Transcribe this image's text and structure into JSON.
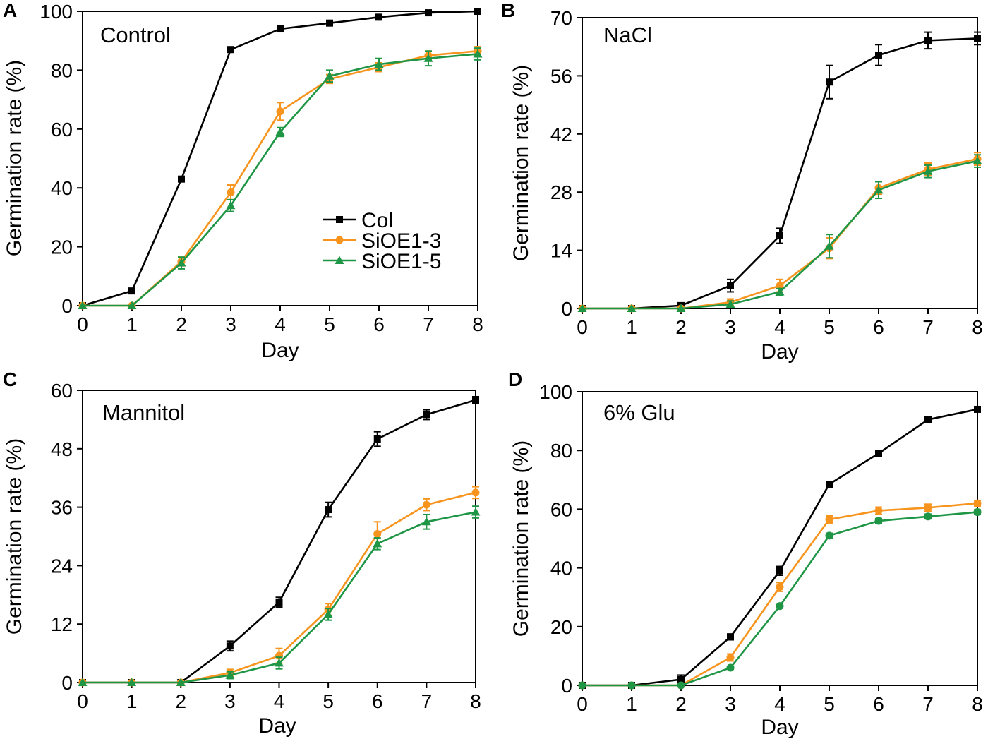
{
  "chart_data": [
    {
      "type": "line",
      "panel": "A",
      "title": "Control",
      "xlabel": "Day",
      "ylabel": "Germination rate (%)",
      "x": [
        0,
        1,
        2,
        3,
        4,
        5,
        6,
        7,
        8
      ],
      "xlim": [
        0,
        8
      ],
      "ylim": [
        0,
        100
      ],
      "yticks": [
        0,
        20,
        40,
        60,
        80,
        100
      ],
      "legend": "center-right",
      "series": [
        {
          "name": "Col",
          "color": "#000000",
          "marker": "square",
          "values": [
            0,
            5,
            43,
            87,
            94,
            96,
            98,
            99.5,
            100
          ],
          "errors": [
            0,
            0.5,
            0.8,
            0.8,
            0.8,
            0.8,
            0.8,
            0.8,
            0.5
          ]
        },
        {
          "name": "SiOE1-3",
          "color": "#f7941d",
          "marker": "circle",
          "values": [
            0,
            0,
            15,
            38.5,
            66,
            77,
            81,
            85,
            86.5
          ],
          "errors": [
            0,
            0,
            1.5,
            2.5,
            3,
            1.5,
            1.5,
            1.5,
            1.5
          ]
        },
        {
          "name": "SiOE1-5",
          "color": "#1e9645",
          "marker": "triangle",
          "values": [
            0,
            0,
            14.5,
            34,
            59,
            78,
            82,
            84,
            85.5
          ],
          "errors": [
            0,
            0,
            2,
            2,
            1.5,
            2,
            2,
            2.5,
            2
          ]
        }
      ]
    },
    {
      "type": "line",
      "panel": "B",
      "title": "NaCl",
      "xlabel": "Day",
      "ylabel": "Germination rate (%)",
      "x": [
        0,
        1,
        2,
        3,
        4,
        5,
        6,
        7,
        8
      ],
      "xlim": [
        0,
        8
      ],
      "ylim": [
        0,
        70
      ],
      "yticks": [
        0,
        14,
        28,
        42,
        56,
        70
      ],
      "series": [
        {
          "name": "Col",
          "color": "#000000",
          "marker": "square",
          "values": [
            0,
            0,
            0.7,
            5.5,
            17.5,
            54.5,
            61,
            64.5,
            65
          ],
          "errors": [
            0,
            0,
            0.5,
            1.5,
            1.8,
            4,
            2.5,
            2,
            1.5
          ]
        },
        {
          "name": "SiOE1-3",
          "color": "#f7941d",
          "marker": "circle",
          "values": [
            0,
            0,
            0,
            1.5,
            5.5,
            14.5,
            29,
            33.5,
            36
          ],
          "errors": [
            0,
            0,
            0,
            0.8,
            1.5,
            2.5,
            1.5,
            1.5,
            1.5
          ]
        },
        {
          "name": "SiOE1-5",
          "color": "#1e9645",
          "marker": "triangle",
          "values": [
            0,
            0,
            0,
            1,
            4,
            15,
            28.5,
            33,
            35.5
          ],
          "errors": [
            0,
            0,
            0,
            0.8,
            0.8,
            2.8,
            2,
            1.5,
            1.5
          ]
        }
      ]
    },
    {
      "type": "line",
      "panel": "C",
      "title": "Mannitol",
      "xlabel": "Day",
      "ylabel": "Germination rate (%)",
      "x": [
        0,
        1,
        2,
        3,
        4,
        5,
        6,
        7,
        8
      ],
      "xlim": [
        0,
        8
      ],
      "ylim": [
        0,
        60
      ],
      "yticks": [
        0,
        12,
        24,
        36,
        48,
        60
      ],
      "series": [
        {
          "name": "Col",
          "color": "#000000",
          "marker": "square",
          "values": [
            0,
            0,
            0,
            7.5,
            16.5,
            35.5,
            50,
            55,
            58
          ],
          "errors": [
            0,
            0,
            0,
            1,
            1,
            1.5,
            1.5,
            1,
            0.7
          ]
        },
        {
          "name": "SiOE1-3",
          "color": "#f7941d",
          "marker": "circle",
          "values": [
            0,
            0,
            0,
            2,
            5.5,
            15,
            30.5,
            36.5,
            39
          ],
          "errors": [
            0,
            0,
            0,
            0.7,
            1.5,
            1.2,
            2.5,
            1.2,
            1.2
          ]
        },
        {
          "name": "SiOE1-5",
          "color": "#1e9645",
          "marker": "triangle",
          "values": [
            0,
            0,
            0,
            1.5,
            4,
            14,
            28.5,
            33,
            35
          ],
          "errors": [
            0,
            0,
            0,
            0.7,
            1.2,
            1.2,
            1.2,
            1.5,
            1.2
          ]
        }
      ]
    },
    {
      "type": "line",
      "panel": "D",
      "title": "6% Glu",
      "xlabel": "Day",
      "ylabel": "Germination rate (%)",
      "x": [
        0,
        1,
        2,
        3,
        4,
        5,
        6,
        7,
        8
      ],
      "xlim": [
        0,
        8
      ],
      "ylim": [
        0,
        100
      ],
      "yticks": [
        0,
        20,
        40,
        60,
        80,
        100
      ],
      "series": [
        {
          "name": "Col",
          "color": "#000000",
          "marker": "square",
          "values": [
            0,
            0,
            2,
            16.5,
            39,
            68.5,
            79,
            90.5,
            94
          ],
          "errors": [
            0,
            0,
            1.5,
            1,
            1.5,
            0.8,
            0.8,
            0.8,
            0.8
          ]
        },
        {
          "name": "SiOE1-3",
          "color": "#f7941d",
          "marker": "circle",
          "values": [
            0,
            0,
            0,
            9.5,
            33.5,
            56.5,
            59.5,
            60.5,
            62
          ],
          "errors": [
            0,
            0,
            0,
            1.2,
            1.5,
            1.2,
            1.2,
            1.2,
            1
          ]
        },
        {
          "name": "SiOE1-5",
          "color": "#1e9645",
          "marker": "circle",
          "values": [
            0,
            0,
            0,
            6,
            27,
            51,
            56,
            57.5,
            59
          ],
          "errors": [
            0,
            0,
            0,
            0.5,
            0.5,
            0.8,
            0.8,
            0.8,
            0.8
          ]
        }
      ]
    }
  ]
}
